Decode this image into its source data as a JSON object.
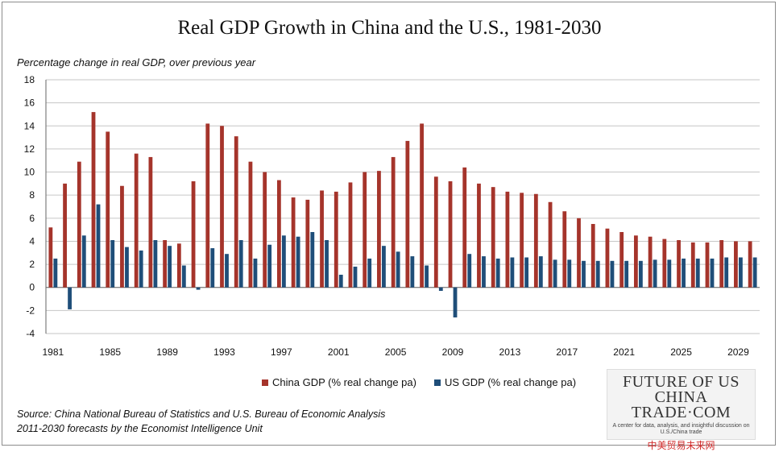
{
  "chart_data": {
    "type": "bar",
    "title": "Real GDP Growth in China and the U.S., 1981-2030",
    "ylabel": "Percentage change in real GDP, over previous year",
    "ylim": [
      -4,
      18
    ],
    "yticks": [
      -4,
      -2,
      0,
      2,
      4,
      6,
      8,
      10,
      12,
      14,
      16,
      18
    ],
    "grid": true,
    "legend_position": "bottom",
    "x": [
      1981,
      1982,
      1983,
      1984,
      1985,
      1986,
      1987,
      1988,
      1989,
      1990,
      1991,
      1992,
      1993,
      1994,
      1995,
      1996,
      1997,
      1998,
      1999,
      2000,
      2001,
      2002,
      2003,
      2004,
      2005,
      2006,
      2007,
      2008,
      2009,
      2010,
      2011,
      2012,
      2013,
      2014,
      2015,
      2016,
      2017,
      2018,
      2019,
      2020,
      2021,
      2022,
      2023,
      2024,
      2025,
      2026,
      2027,
      2028,
      2029,
      2030
    ],
    "xtick_labels": [
      "1981",
      "1985",
      "1989",
      "1993",
      "1997",
      "2001",
      "2005",
      "2009",
      "2013",
      "2017",
      "2021",
      "2025",
      "2029"
    ],
    "series": [
      {
        "name": "China GDP (% real change pa)",
        "color": "#A5342B",
        "values": [
          5.2,
          9.0,
          10.9,
          15.2,
          13.5,
          8.8,
          11.6,
          11.3,
          4.1,
          3.8,
          9.2,
          14.2,
          14.0,
          13.1,
          10.9,
          10.0,
          9.3,
          7.8,
          7.6,
          8.4,
          8.3,
          9.1,
          10.0,
          10.1,
          11.3,
          12.7,
          14.2,
          9.6,
          9.2,
          10.4,
          9.0,
          8.7,
          8.3,
          8.2,
          8.1,
          7.4,
          6.6,
          6.0,
          5.5,
          5.1,
          4.8,
          4.5,
          4.4,
          4.2,
          4.1,
          3.9,
          3.9,
          4.1,
          4.0,
          4.0
        ]
      },
      {
        "name": "US GDP (% real change pa)",
        "color": "#1F4E79",
        "values": [
          2.5,
          -1.9,
          4.5,
          7.2,
          4.1,
          3.5,
          3.2,
          4.1,
          3.6,
          1.9,
          -0.2,
          3.4,
          2.9,
          4.1,
          2.5,
          3.7,
          4.5,
          4.4,
          4.8,
          4.1,
          1.1,
          1.8,
          2.5,
          3.6,
          3.1,
          2.7,
          1.9,
          -0.3,
          -2.6,
          2.9,
          2.7,
          2.5,
          2.6,
          2.6,
          2.7,
          2.4,
          2.4,
          2.3,
          2.3,
          2.3,
          2.3,
          2.3,
          2.4,
          2.4,
          2.5,
          2.5,
          2.5,
          2.6,
          2.6,
          2.6
        ]
      }
    ]
  },
  "source_line1": "Source:  China National Bureau of Statistics and U.S. Bureau of Economic Analysis",
  "source_line2": "2011-2030 forecasts by the Economist Intelligence Unit",
  "logo": {
    "main": "FUTURE OF US CHINA TRADE·COM",
    "tagline": "A center for data, analysis, and insightful discussion on U.S./China trade",
    "chinese": "中美贸易未来网"
  }
}
